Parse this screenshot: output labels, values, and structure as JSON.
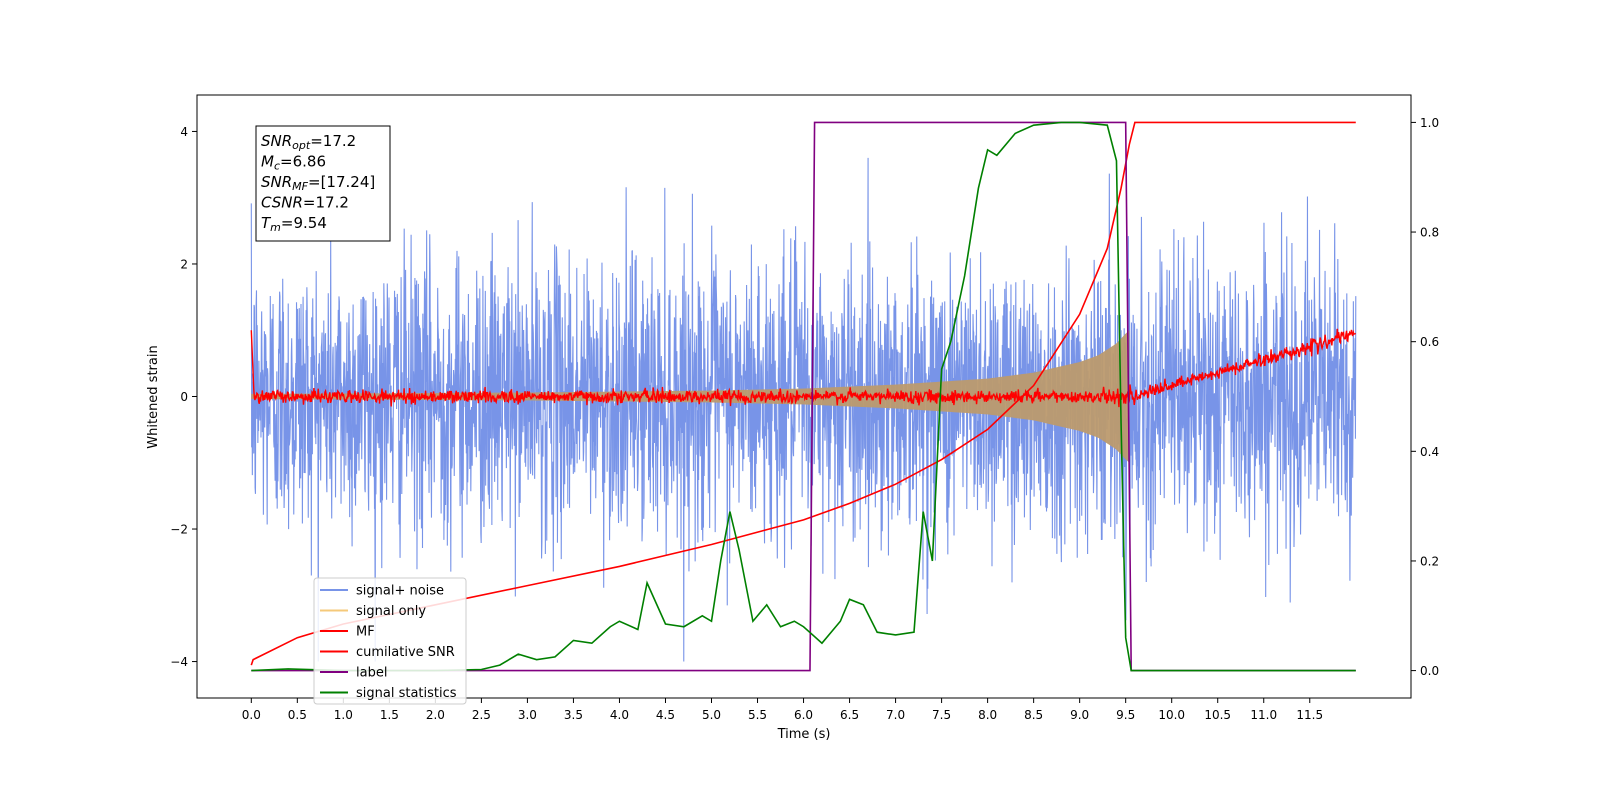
{
  "chart_data": {
    "type": "line",
    "xlabel": "Time (s)",
    "ylabel": "Whitened strain",
    "xlim": [
      -0.59,
      12.6
    ],
    "ylim_left": [
      -4.55,
      4.55
    ],
    "ylim_right": [
      -0.05,
      1.05
    ],
    "x_ticks": [
      0.0,
      0.5,
      1.0,
      1.5,
      2.0,
      2.5,
      3.0,
      3.5,
      4.0,
      4.5,
      5.0,
      5.5,
      6.0,
      6.5,
      7.0,
      7.5,
      8.0,
      8.5,
      9.0,
      9.5,
      10.0,
      10.5,
      11.0,
      11.5
    ],
    "x_tick_labels": [
      "0.0",
      "0.5",
      "1.0",
      "1.5",
      "2.0",
      "2.5",
      "3.0",
      "3.5",
      "4.0",
      "4.5",
      "5.0",
      "5.5",
      "6.0",
      "6.5",
      "7.0",
      "7.5",
      "8.0",
      "8.5",
      "9.0",
      "9.5",
      "10.0",
      "10.5",
      "11.0",
      "11.5"
    ],
    "y_ticks_left": [
      -4,
      -2,
      0,
      2,
      4
    ],
    "y_tick_labels_left": [
      "−4",
      "−2",
      "0",
      "2",
      "4"
    ],
    "y_ticks_right": [
      0.0,
      0.2,
      0.4,
      0.6,
      0.8,
      1.0
    ],
    "y_tick_labels_right": [
      "0.0",
      "0.2",
      "0.4",
      "0.6",
      "0.8",
      "1.0"
    ],
    "grid": false,
    "legend_position": "lower-left",
    "annotation": {
      "lines": [
        {
          "base": "SNR",
          "sub": "opt",
          "rest": "=17.2"
        },
        {
          "base": "M",
          "sub": "c",
          "rest": "=6.86"
        },
        {
          "base": "SNR",
          "sub": "MF",
          "rest": "=[17.24]"
        },
        {
          "base": "CSNR",
          "sub": "",
          "rest": "=17.2"
        },
        {
          "base": "T",
          "sub": "m",
          "rest": "=9.54"
        }
      ]
    },
    "series": [
      {
        "name": "signal+ noise",
        "axis": "left",
        "color": "#7894e8",
        "amplitude_std": 1.0,
        "x_range": [
          0.0,
          12.0
        ]
      },
      {
        "name": "signal only",
        "axis": "left",
        "color": "#f5c97a",
        "fill_color": "#bc9a6e",
        "envelope_x": [
          0.0,
          3.0,
          5.0,
          6.0,
          7.0,
          8.0,
          8.5,
          9.0,
          9.2,
          9.4,
          9.5,
          9.54
        ],
        "envelope_y": [
          0.04,
          0.06,
          0.09,
          0.12,
          0.18,
          0.27,
          0.36,
          0.52,
          0.62,
          0.8,
          0.95,
          1.0
        ]
      },
      {
        "name": "MF",
        "axis": "left",
        "color": "#ff0000",
        "x": [
          0.0,
          0.03,
          0.5,
          6.0,
          9.6,
          12.0
        ],
        "y": [
          1.0,
          0.0,
          0.0,
          0.0,
          0.0,
          0.95
        ],
        "noise_std": 0.05
      },
      {
        "name": "cumilative SNR",
        "axis": "right",
        "color": "#ff0000",
        "x": [
          0.0,
          0.02,
          0.5,
          1.0,
          2.0,
          3.0,
          4.0,
          5.0,
          6.0,
          6.5,
          7.0,
          7.5,
          8.0,
          8.5,
          9.0,
          9.3,
          9.45,
          9.54,
          9.6,
          12.0
        ],
        "y": [
          0.01,
          0.02,
          0.06,
          0.085,
          0.12,
          0.155,
          0.19,
          0.23,
          0.275,
          0.305,
          0.34,
          0.385,
          0.44,
          0.52,
          0.65,
          0.77,
          0.88,
          0.96,
          1.0,
          1.0
        ]
      },
      {
        "name": "label",
        "axis": "right",
        "color": "#800080",
        "x": [
          0.0,
          6.07,
          6.12,
          9.5,
          9.56,
          12.0
        ],
        "y": [
          0.0,
          0.0,
          1.0,
          1.0,
          0.0,
          0.0
        ]
      },
      {
        "name": "signal statistics",
        "axis": "right",
        "color": "#008000",
        "x": [
          0.0,
          0.4,
          1.0,
          2.0,
          2.5,
          2.7,
          2.9,
          3.1,
          3.3,
          3.5,
          3.7,
          3.9,
          4.0,
          4.2,
          4.3,
          4.5,
          4.7,
          4.9,
          5.0,
          5.1,
          5.2,
          5.3,
          5.45,
          5.6,
          5.75,
          5.9,
          6.0,
          6.2,
          6.4,
          6.5,
          6.65,
          6.8,
          7.0,
          7.2,
          7.3,
          7.4,
          7.5,
          7.6,
          7.75,
          7.9,
          8.0,
          8.1,
          8.3,
          8.5,
          8.8,
          9.0,
          9.3,
          9.4,
          9.45,
          9.5,
          9.56,
          9.6,
          12.0
        ],
        "y": [
          0.0,
          0.003,
          0.0,
          0.0,
          0.002,
          0.01,
          0.03,
          0.02,
          0.025,
          0.055,
          0.05,
          0.08,
          0.09,
          0.075,
          0.16,
          0.085,
          0.08,
          0.1,
          0.09,
          0.2,
          0.29,
          0.22,
          0.09,
          0.12,
          0.08,
          0.09,
          0.08,
          0.05,
          0.09,
          0.13,
          0.12,
          0.07,
          0.065,
          0.07,
          0.29,
          0.2,
          0.55,
          0.6,
          0.72,
          0.88,
          0.95,
          0.94,
          0.98,
          0.995,
          1.0,
          1.0,
          0.995,
          0.93,
          0.45,
          0.06,
          0.0,
          0.0,
          0.0
        ]
      }
    ]
  }
}
